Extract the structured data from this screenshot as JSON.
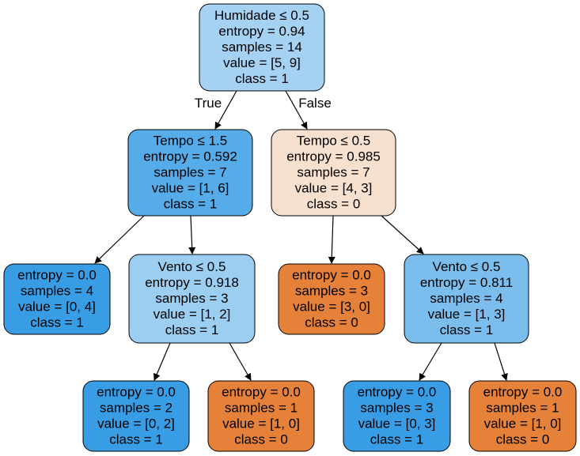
{
  "colors": {
    "strong_blue": "#399de5",
    "medium_blue": "#56abe9",
    "light_blue": "#a5d2f3",
    "pale_blue": "#9ccef2",
    "sky_blue": "#7bbeee",
    "orange": "#e58139",
    "peach": "#f8e0ce",
    "edge": "#000000",
    "node_border": "#000000"
  },
  "nodes": [
    {
      "id": "n0",
      "fill": "light_blue",
      "lines": [
        "Humidade ≤ 0.5",
        "entropy = 0.94",
        "samples = 14",
        "value = [5, 9]",
        "class = 1"
      ]
    },
    {
      "id": "n1",
      "fill": "medium_blue",
      "lines": [
        "Tempo ≤ 1.5",
        "entropy = 0.592",
        "samples = 7",
        "value = [1, 6]",
        "class = 1"
      ]
    },
    {
      "id": "n2",
      "fill": "peach",
      "lines": [
        "Tempo ≤ 0.5",
        "entropy = 0.985",
        "samples = 7",
        "value = [4, 3]",
        "class = 0"
      ]
    },
    {
      "id": "n3",
      "fill": "strong_blue",
      "lines": [
        "entropy = 0.0",
        "samples = 4",
        "value = [0, 4]",
        "class = 1"
      ]
    },
    {
      "id": "n4",
      "fill": "pale_blue",
      "lines": [
        "Vento ≤ 0.5",
        "entropy = 0.918",
        "samples = 3",
        "value = [1, 2]",
        "class = 1"
      ]
    },
    {
      "id": "n5",
      "fill": "orange",
      "lines": [
        "entropy = 0.0",
        "samples = 3",
        "value = [3, 0]",
        "class = 0"
      ]
    },
    {
      "id": "n6",
      "fill": "sky_blue",
      "lines": [
        "Vento ≤ 0.5",
        "entropy = 0.811",
        "samples = 4",
        "value = [1, 3]",
        "class = 1"
      ]
    },
    {
      "id": "n7",
      "fill": "strong_blue",
      "lines": [
        "entropy = 0.0",
        "samples = 2",
        "value = [0, 2]",
        "class = 1"
      ]
    },
    {
      "id": "n8",
      "fill": "orange",
      "lines": [
        "entropy = 0.0",
        "samples = 1",
        "value = [1, 0]",
        "class = 0"
      ]
    },
    {
      "id": "n9",
      "fill": "strong_blue",
      "lines": [
        "entropy = 0.0",
        "samples = 3",
        "value = [0, 3]",
        "class = 1"
      ]
    },
    {
      "id": "n10",
      "fill": "orange",
      "lines": [
        "entropy = 0.0",
        "samples = 1",
        "value = [1, 0]",
        "class = 0"
      ]
    }
  ],
  "edges": [
    {
      "from": "n0",
      "to": "n1",
      "label": "True"
    },
    {
      "from": "n0",
      "to": "n2",
      "label": "False"
    },
    {
      "from": "n1",
      "to": "n3",
      "label": ""
    },
    {
      "from": "n1",
      "to": "n4",
      "label": ""
    },
    {
      "from": "n2",
      "to": "n5",
      "label": ""
    },
    {
      "from": "n2",
      "to": "n6",
      "label": ""
    },
    {
      "from": "n4",
      "to": "n7",
      "label": ""
    },
    {
      "from": "n4",
      "to": "n8",
      "label": ""
    },
    {
      "from": "n6",
      "to": "n9",
      "label": ""
    },
    {
      "from": "n6",
      "to": "n10",
      "label": ""
    }
  ]
}
